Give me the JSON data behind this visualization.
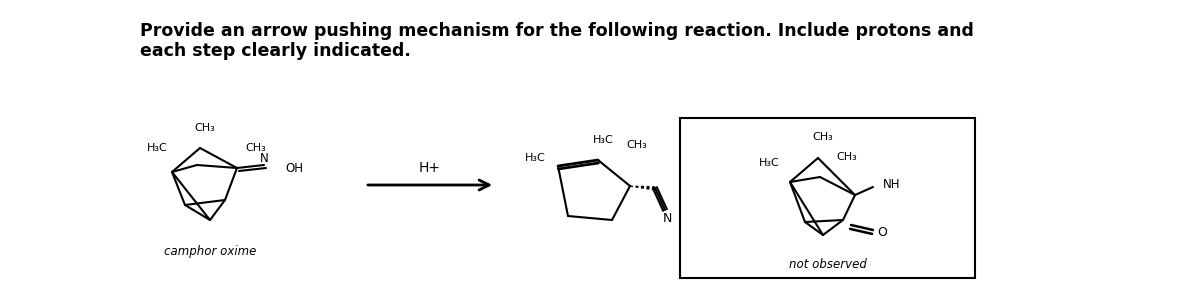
{
  "title_line1": "Provide an arrow pushing mechanism for the following reaction. Include protons and",
  "title_line2": "each step clearly indicated.",
  "title_fontsize": 12.5,
  "bg_color": "#ffffff",
  "camphor_label": "camphor oxime",
  "not_observed_label": "not observed",
  "hplus": "H+"
}
